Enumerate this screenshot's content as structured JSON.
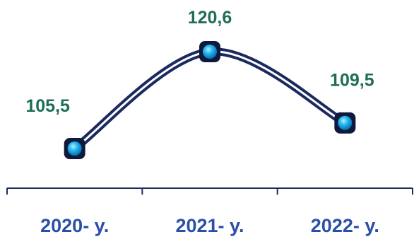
{
  "chart_data": {
    "type": "line",
    "categories": [
      "2020- y.",
      "2021- y.",
      "2022- y."
    ],
    "series": [
      {
        "values": [
          105.5,
          120.6,
          109.5
        ]
      }
    ],
    "data_labels": [
      "105,5",
      "120,6",
      "109,5"
    ],
    "title": "",
    "xlabel": "",
    "ylabel": "",
    "ylim": [
      100,
      125
    ],
    "grid": false,
    "legend": "none",
    "colors": {
      "line_outer": "#1b2a5e",
      "line_inner": "#ffffff",
      "marker_fill": "#22b8f0",
      "marker_border": "#0d1a3c",
      "data_label": "#1f6e5a",
      "tick_label": "#2b4fa8",
      "axis": "#1b2a5e"
    }
  }
}
